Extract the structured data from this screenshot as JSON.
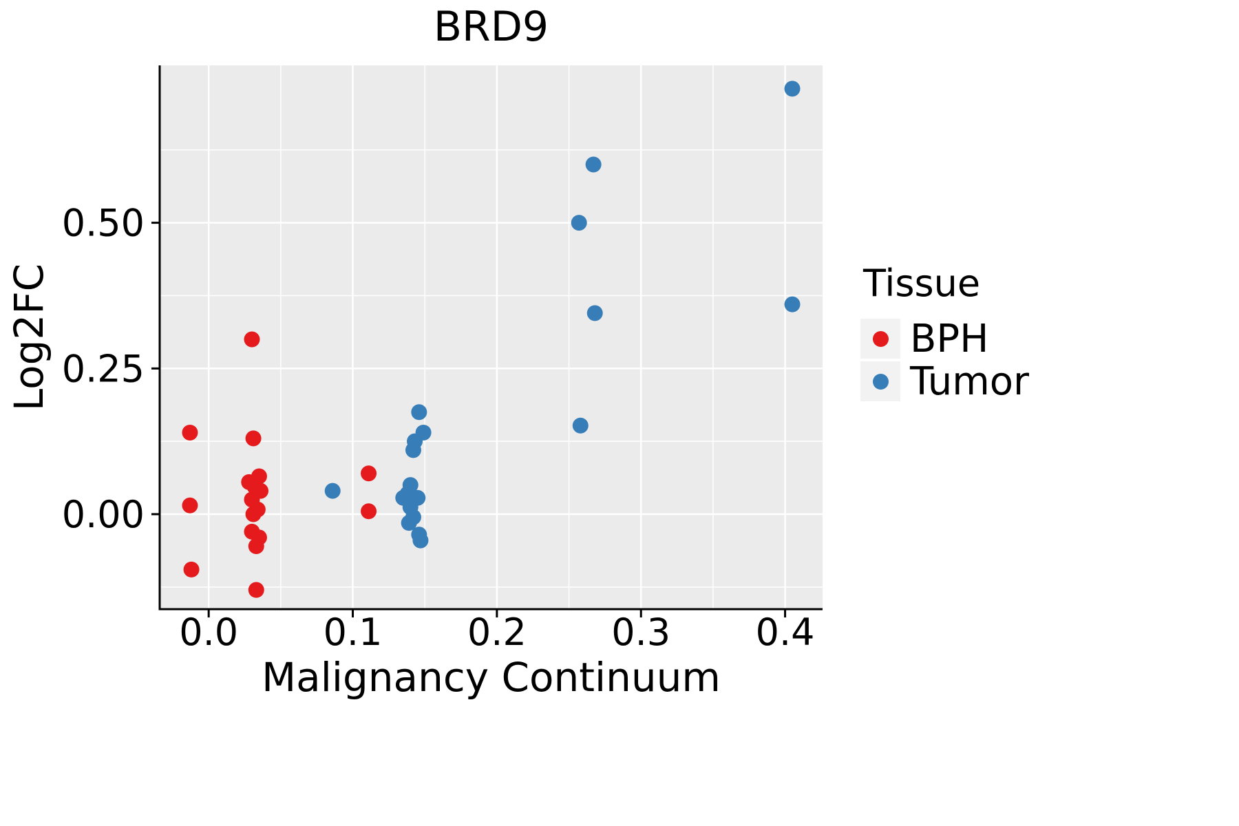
{
  "chart_data": {
    "type": "scatter",
    "title": "BRD9",
    "xlabel": "Malignancy Continuum",
    "ylabel": "Log2FC",
    "xlim": [
      -0.034,
      0.426
    ],
    "ylim": [
      -0.163,
      0.77
    ],
    "x_ticks": [
      0.0,
      0.1,
      0.2,
      0.3,
      0.4
    ],
    "x_tick_labels": [
      "0.0",
      "0.1",
      "0.2",
      "0.3",
      "0.4"
    ],
    "y_ticks": [
      0.0,
      0.25,
      0.5
    ],
    "y_tick_labels": [
      "0.00",
      "0.25",
      "0.50"
    ],
    "x_minor_ticks": [
      0.05,
      0.15,
      0.25,
      0.35
    ],
    "y_minor_ticks": [
      -0.125,
      0.125,
      0.375,
      0.625
    ],
    "grid": true,
    "panel_background": "#EBEBEB",
    "grid_color": "#FFFFFF",
    "axis_color": "#000000",
    "point_radius": 11.5,
    "legend": {
      "title": "Tissue",
      "position": "right",
      "key_background": "#F2F2F2"
    },
    "series": [
      {
        "name": "BPH",
        "color": "#E41A1C",
        "points": [
          [
            -0.013,
            0.14
          ],
          [
            -0.013,
            0.015
          ],
          [
            -0.012,
            -0.095
          ],
          [
            0.03,
            0.3
          ],
          [
            0.031,
            0.13
          ],
          [
            0.028,
            0.055
          ],
          [
            0.035,
            0.065
          ],
          [
            0.032,
            0.047
          ],
          [
            0.036,
            0.04
          ],
          [
            0.03,
            0.025
          ],
          [
            0.034,
            0.008
          ],
          [
            0.031,
            0.0
          ],
          [
            0.03,
            -0.03
          ],
          [
            0.035,
            -0.04
          ],
          [
            0.033,
            -0.055
          ],
          [
            0.033,
            -0.13
          ],
          [
            0.111,
            0.07
          ],
          [
            0.111,
            0.005
          ]
        ]
      },
      {
        "name": "Tumor",
        "color": "#377EB8",
        "points": [
          [
            0.086,
            0.04
          ],
          [
            0.146,
            0.175
          ],
          [
            0.149,
            0.14
          ],
          [
            0.143,
            0.125
          ],
          [
            0.142,
            0.11
          ],
          [
            0.14,
            0.05
          ],
          [
            0.138,
            0.035
          ],
          [
            0.145,
            0.028
          ],
          [
            0.135,
            0.028
          ],
          [
            0.14,
            0.012
          ],
          [
            0.142,
            -0.005
          ],
          [
            0.139,
            -0.015
          ],
          [
            0.146,
            -0.035
          ],
          [
            0.147,
            -0.045
          ],
          [
            0.258,
            0.152
          ],
          [
            0.257,
            0.5
          ],
          [
            0.267,
            0.6
          ],
          [
            0.268,
            0.345
          ],
          [
            0.405,
            0.73
          ],
          [
            0.405,
            0.36
          ]
        ]
      }
    ]
  }
}
